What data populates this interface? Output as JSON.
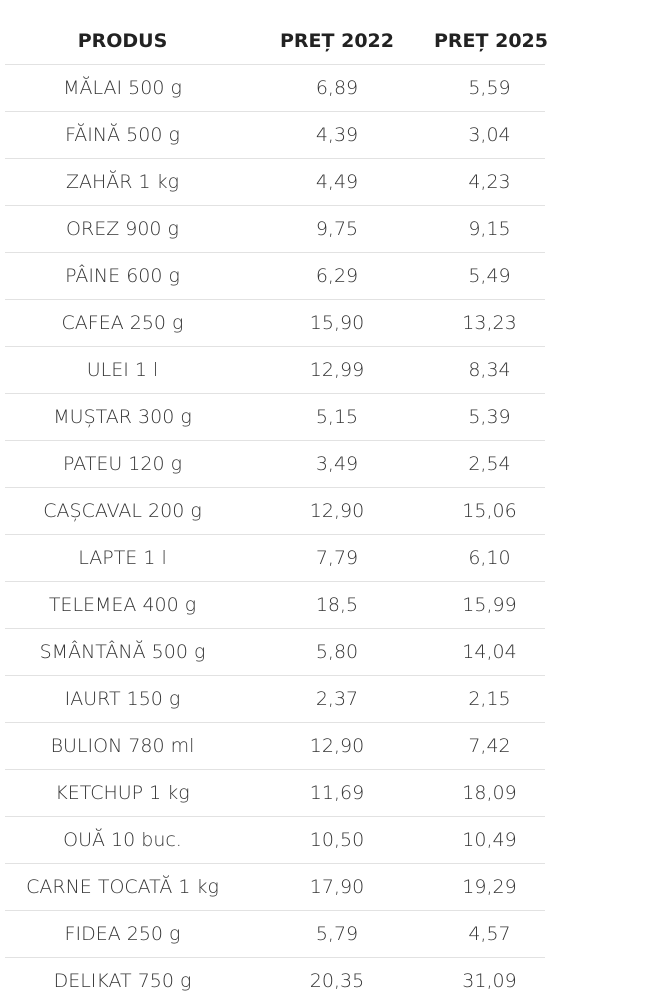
{
  "table": {
    "headers": [
      "PRODUS",
      "PREȚ 2022",
      "PREȚ 2025"
    ],
    "rows": [
      [
        "MĂLAI 500 g",
        "6,89",
        "5,59"
      ],
      [
        "FĂINĂ 500 g",
        "4,39",
        "3,04"
      ],
      [
        "ZAHĂR 1 kg",
        "4,49",
        "4,23"
      ],
      [
        "OREZ 900 g",
        "9,75",
        "9,15"
      ],
      [
        "PÂINE 600 g",
        "6,29",
        "5,49"
      ],
      [
        "CAFEA 250 g",
        "15,90",
        "13,23"
      ],
      [
        "ULEI 1 l",
        "12,99",
        "8,34"
      ],
      [
        "MUȘTAR 300 g",
        "5,15",
        "5,39"
      ],
      [
        "PATEU 120 g",
        "3,49",
        "2,54"
      ],
      [
        "CAȘCAVAL 200 g",
        "12,90",
        "15,06"
      ],
      [
        "LAPTE 1 l",
        "7,79",
        "6,10"
      ],
      [
        "TELEMEA 400 g",
        "18,5",
        "15,99"
      ],
      [
        "SMÂNTÂNĂ 500 g",
        "5,80",
        "14,04"
      ],
      [
        "IAURT 150 g",
        "2,37",
        "2,15"
      ],
      [
        "BULION 780 ml",
        "12,90",
        "7,42"
      ],
      [
        "KETCHUP 1 kg",
        "11,69",
        "18,09"
      ],
      [
        "OUĂ 10 buc.",
        "10,50",
        "10,49"
      ],
      [
        "CARNE TOCATĂ 1 kg",
        "17,90",
        "19,29"
      ],
      [
        "FIDEA 250 g",
        "5,79",
        "4,57"
      ],
      [
        "DELIKAT 750 g",
        "20,35",
        "31,09"
      ]
    ]
  }
}
